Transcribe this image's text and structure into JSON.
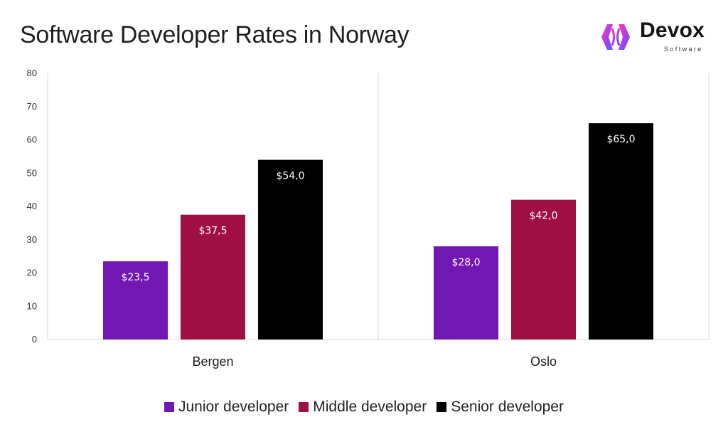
{
  "title": "Software Developer Rates in Norway",
  "brand": {
    "name": "Devox",
    "sub": "Software"
  },
  "chart_data": {
    "type": "bar",
    "title": "Software Developer Rates in Norway",
    "categories": [
      "Bergen",
      "Oslo"
    ],
    "series": [
      {
        "name": "Junior developer",
        "color": "#7117b4",
        "values": [
          23.5,
          28.0
        ],
        "labels": [
          "$23,5",
          "$28,0"
        ]
      },
      {
        "name": "Middle developer",
        "color": "#a00f43",
        "values": [
          37.5,
          42.0
        ],
        "labels": [
          "$37,5",
          "$42,0"
        ]
      },
      {
        "name": "Senior developer",
        "color": "#000000",
        "values": [
          54.0,
          65.0
        ],
        "labels": [
          "$54,0",
          "$65,0"
        ]
      }
    ],
    "ylim": [
      0,
      80
    ],
    "yticks": [
      "0",
      "10",
      "20",
      "30",
      "40",
      "50",
      "60",
      "70",
      "80"
    ],
    "xlabel": "",
    "ylabel": "",
    "grid": false,
    "legend": "bottom"
  }
}
